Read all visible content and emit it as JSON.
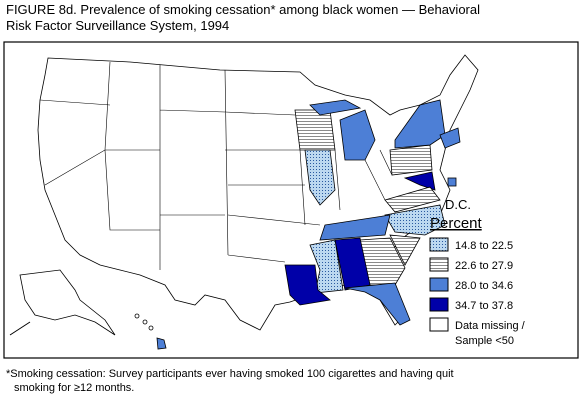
{
  "title": [
    "FIGURE 8d. Prevalence of smoking cessation* among black women  — Behavioral",
    "Risk Factor Surveillance System, 1994"
  ],
  "legend": {
    "title": "Percent",
    "items": [
      {
        "label": [
          "14.8 to 22.5"
        ],
        "color": "#bcd8f0"
      },
      {
        "label": [
          "22.6 to 27.9"
        ],
        "color": "#8a8a8a"
      },
      {
        "label": [
          "28.0 to 34.6"
        ],
        "color": "#4d7fd6"
      },
      {
        "label": [
          "34.7 to 37.8"
        ],
        "color": "#0000a8"
      },
      {
        "label": [
          "Data missing /",
          "Sample <50"
        ],
        "color": "#ffffff"
      }
    ]
  },
  "dc_label": "D.C.",
  "footnote": [
    "*Smoking cessation: Survey participants ever having smoked 100 cigarettes and having quit",
    "smoking for ≥12 months."
  ]
}
